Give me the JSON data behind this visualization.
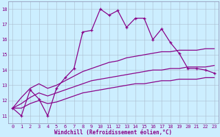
{
  "xlabel": "Windchill (Refroidissement éolien,°C)",
  "background_color": "#cceeff",
  "line_color": "#880088",
  "xlim": [
    -0.5,
    23.5
  ],
  "ylim": [
    10.5,
    18.5
  ],
  "xticks": [
    0,
    1,
    2,
    3,
    4,
    5,
    6,
    7,
    8,
    9,
    10,
    11,
    12,
    13,
    14,
    15,
    16,
    17,
    18,
    19,
    20,
    21,
    22,
    23
  ],
  "yticks": [
    11,
    12,
    13,
    14,
    15,
    16,
    17,
    18
  ],
  "series1_x": [
    0,
    1,
    2,
    3,
    4,
    5,
    6,
    7,
    8,
    9,
    10,
    11,
    12,
    13,
    14,
    15,
    16,
    17,
    18,
    19,
    20,
    21,
    22,
    23
  ],
  "series1_y": [
    11.5,
    11.0,
    12.7,
    12.1,
    11.0,
    12.8,
    13.5,
    14.1,
    16.5,
    16.6,
    18.0,
    17.6,
    17.9,
    16.8,
    17.4,
    17.4,
    16.0,
    16.7,
    15.8,
    15.1,
    14.1,
    14.1,
    14.0,
    13.8
  ],
  "series2_x": [
    0,
    1,
    2,
    3,
    4,
    5,
    6,
    7,
    8,
    9,
    10,
    11,
    12,
    13,
    14,
    15,
    16,
    17,
    18,
    19,
    20,
    21,
    22,
    23
  ],
  "series2_y": [
    11.5,
    12.2,
    12.8,
    13.1,
    12.8,
    13.0,
    13.3,
    13.6,
    13.9,
    14.1,
    14.3,
    14.5,
    14.6,
    14.8,
    14.9,
    15.0,
    15.1,
    15.2,
    15.2,
    15.3,
    15.3,
    15.3,
    15.4,
    15.4
  ],
  "series3_x": [
    0,
    1,
    2,
    3,
    4,
    5,
    6,
    7,
    8,
    9,
    10,
    11,
    12,
    13,
    14,
    15,
    16,
    17,
    18,
    19,
    20,
    21,
    22,
    23
  ],
  "series3_y": [
    11.5,
    11.8,
    12.2,
    12.5,
    12.3,
    12.5,
    12.7,
    12.9,
    13.1,
    13.3,
    13.4,
    13.5,
    13.6,
    13.7,
    13.8,
    13.9,
    14.0,
    14.0,
    14.1,
    14.1,
    14.2,
    14.2,
    14.2,
    14.3
  ],
  "series4_x": [
    0,
    1,
    2,
    3,
    4,
    5,
    6,
    7,
    8,
    9,
    10,
    11,
    12,
    13,
    14,
    15,
    16,
    17,
    18,
    19,
    20,
    21,
    22,
    23
  ],
  "series4_y": [
    11.5,
    11.5,
    11.8,
    12.0,
    11.8,
    11.9,
    12.1,
    12.3,
    12.5,
    12.6,
    12.7,
    12.8,
    12.9,
    13.0,
    13.1,
    13.1,
    13.2,
    13.3,
    13.3,
    13.4,
    13.4,
    13.4,
    13.5,
    13.5
  ],
  "grid_color": "#aabbcc",
  "spine_color": "#8888aa",
  "tick_fontsize": 5.0,
  "xlabel_fontsize": 5.5,
  "marker": "+",
  "markersize": 3.5,
  "linewidth": 0.9
}
